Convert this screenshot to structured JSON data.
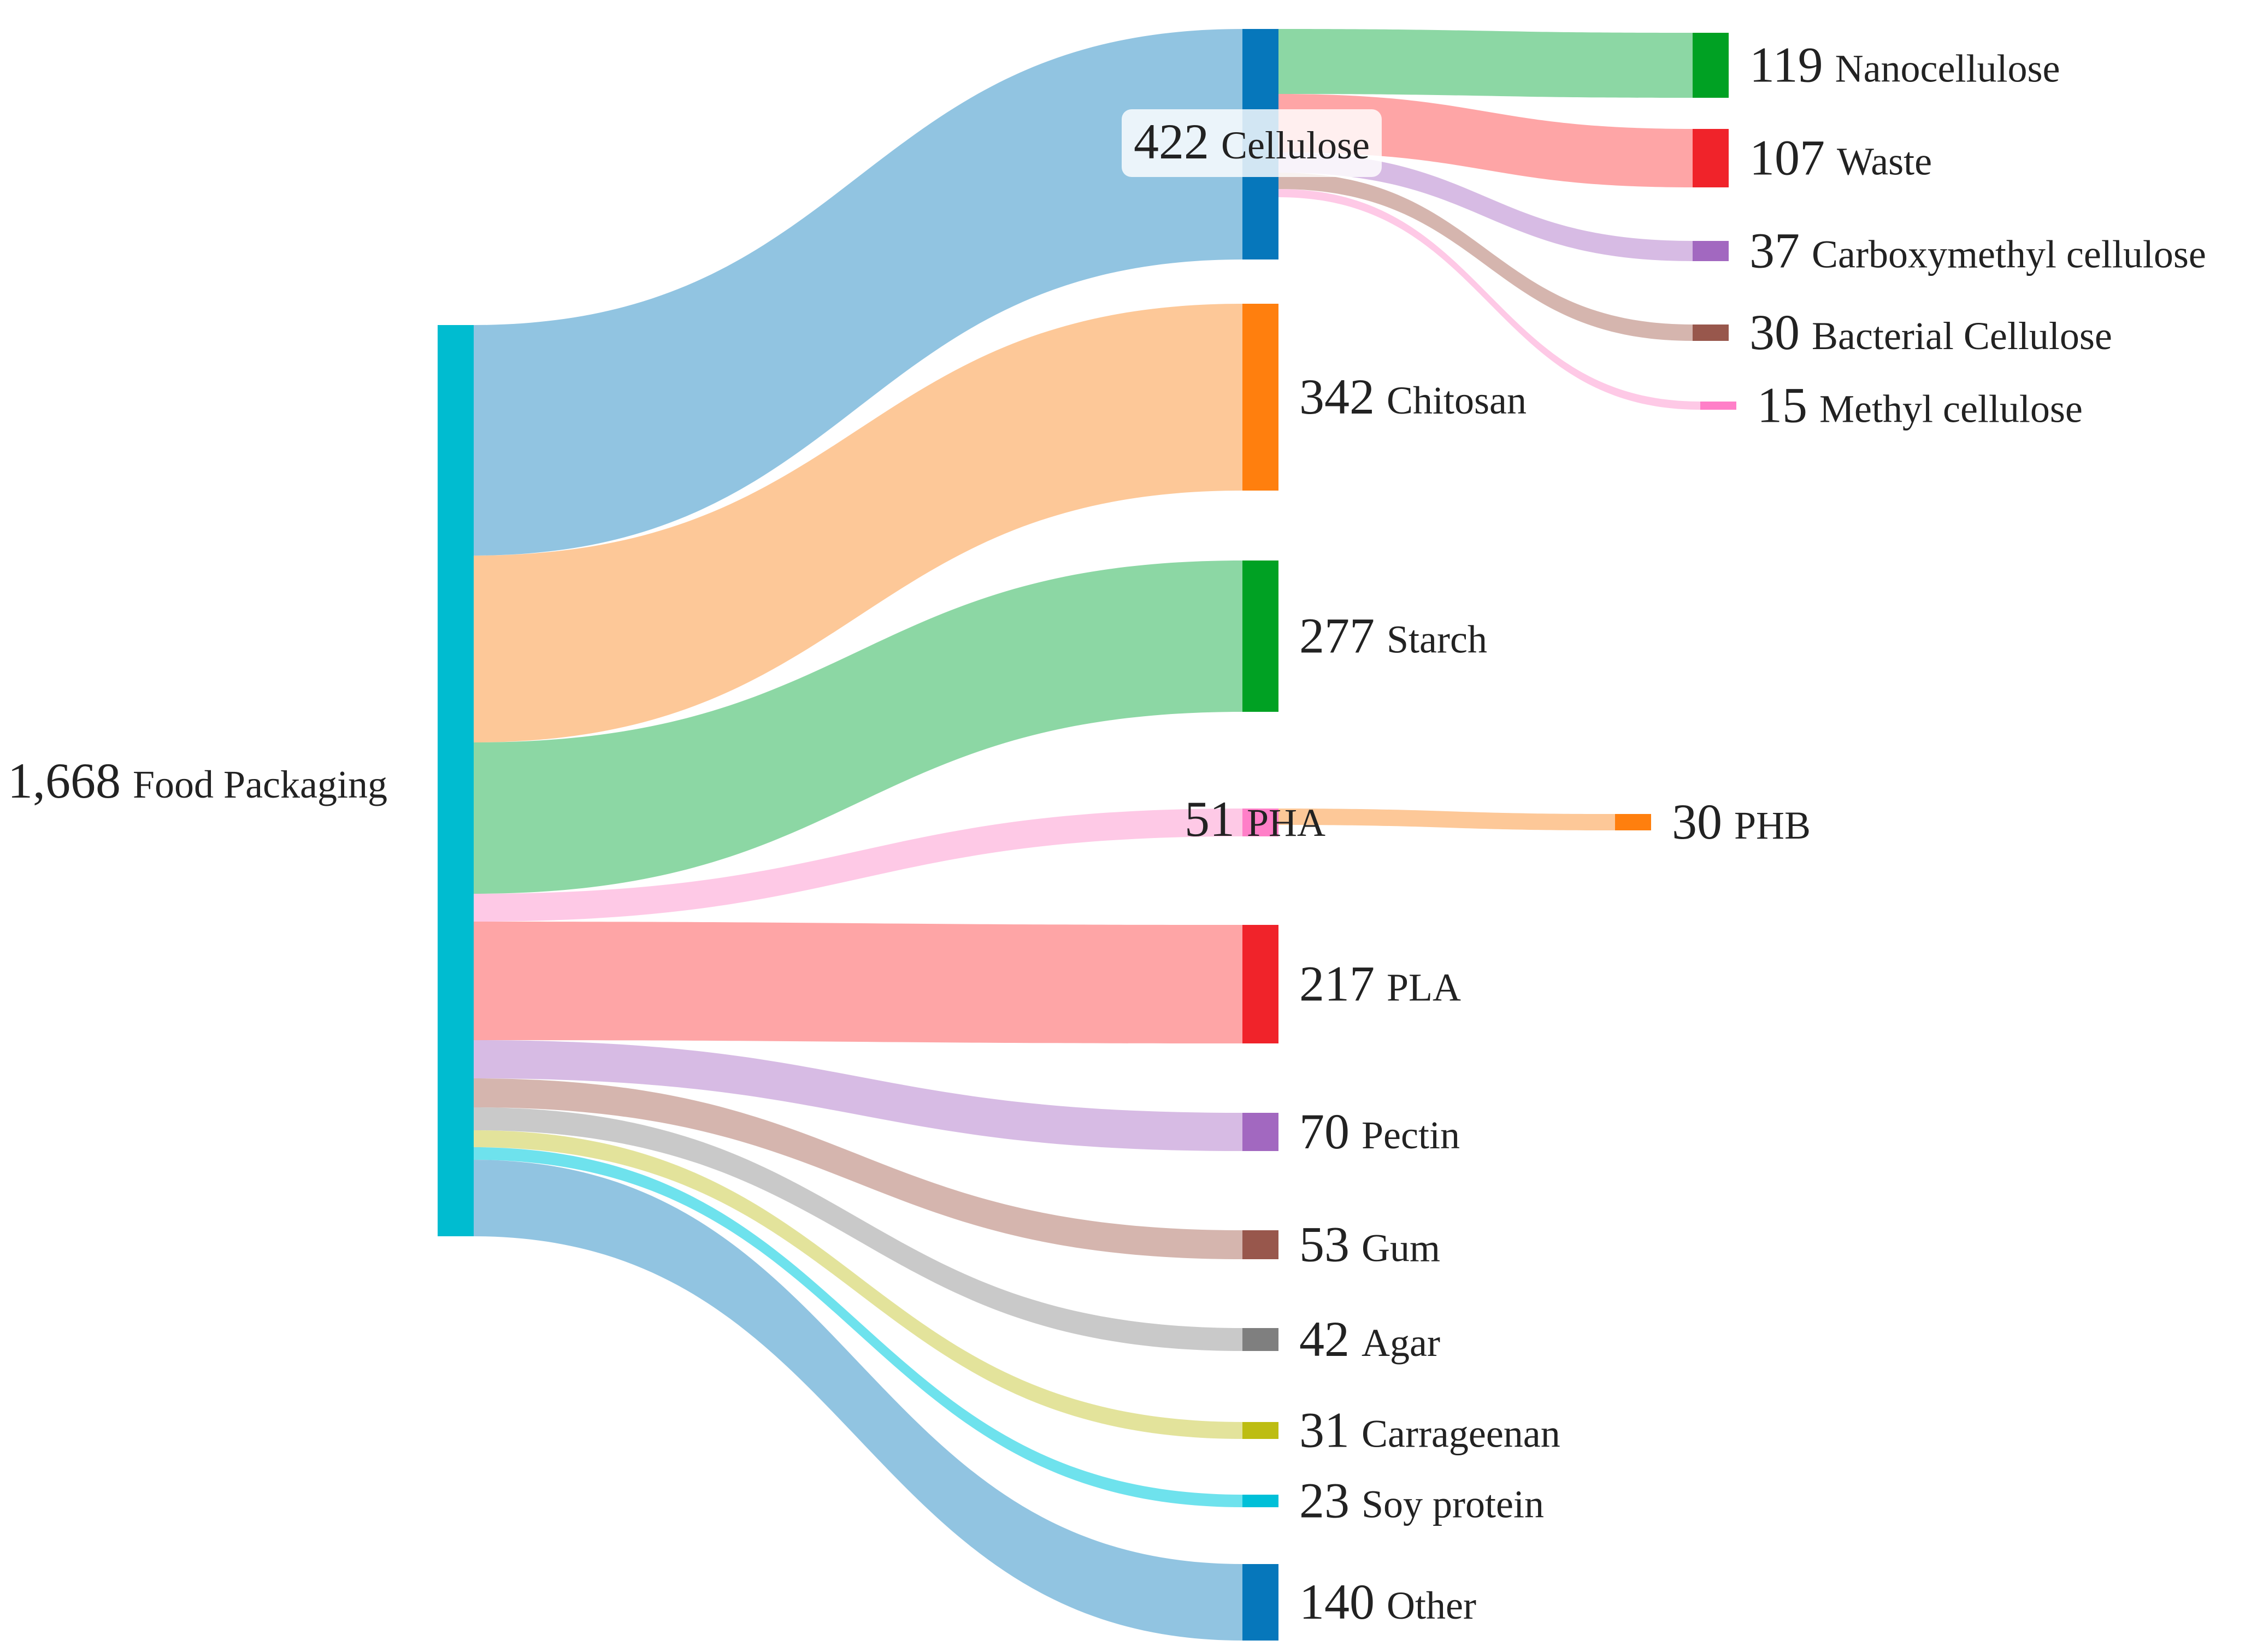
{
  "chart_data": {
    "type": "sankey",
    "title": "",
    "root": {
      "id": "food_packaging",
      "name": "Food Packaging",
      "value_label": "1,668",
      "value": 1668,
      "color": "#00bcd0"
    },
    "materials": [
      {
        "id": "cellulose",
        "name": "Cellulose",
        "value_label": "422",
        "value": 422,
        "color": "#0677bb",
        "flow_color": "#8bc1df"
      },
      {
        "id": "chitosan",
        "name": "Chitosan",
        "value_label": "342",
        "value": 342,
        "color": "#ff7f0e",
        "flow_color": "#fdc592"
      },
      {
        "id": "starch",
        "name": "Starch",
        "value_label": "277",
        "value": 277,
        "color": "#00a123",
        "flow_color": "#86d59f"
      },
      {
        "id": "pha",
        "name": "PHA",
        "value_label": "51",
        "value": 51,
        "color": "#ff7fc8",
        "flow_color": "#fec6e5"
      },
      {
        "id": "pla",
        "name": "PLA",
        "value_label": "217",
        "value": 217,
        "color": "#f0232a",
        "flow_color": "#fea0a1"
      },
      {
        "id": "pectin",
        "name": "Pectin",
        "value_label": "70",
        "value": 70,
        "color": "#a268c0",
        "flow_color": "#d5b7e3"
      },
      {
        "id": "gum",
        "name": "Gum",
        "value_label": "53",
        "value": 53,
        "color": "#98574c",
        "flow_color": "#d3b1aa"
      },
      {
        "id": "agar",
        "name": "Agar",
        "value_label": "42",
        "value": 42,
        "color": "#7f7f7f",
        "flow_color": "#c6c6c6"
      },
      {
        "id": "carrageenan",
        "name": "Carrageenan",
        "value_label": "31",
        "value": 31,
        "color": "#bdbd12",
        "flow_color": "#e2e296"
      },
      {
        "id": "soy_protein",
        "name": "Soy protein",
        "value_label": "23",
        "value": 23,
        "color": "#00c0d8",
        "flow_color": "#66e0ec"
      },
      {
        "id": "other",
        "name": "Other",
        "value_label": "140",
        "value": 140,
        "color": "#0677bb",
        "flow_color": "#8bc1df"
      }
    ],
    "sub_products": [
      {
        "id": "nanocellulose",
        "parent": "cellulose",
        "name": "Nanocellulose",
        "value_label": "119",
        "value": 119,
        "color": "#00a123",
        "flow_color": "#86d59f"
      },
      {
        "id": "waste",
        "parent": "cellulose",
        "name": "Waste",
        "value_label": "107",
        "value": 107,
        "color": "#f0232a",
        "flow_color": "#fea0a1"
      },
      {
        "id": "cmc",
        "parent": "cellulose",
        "name": "Carboxymethyl cellulose",
        "value_label": "37",
        "value": 37,
        "color": "#a268c0",
        "flow_color": "#d5b7e3"
      },
      {
        "id": "bacterial_cellulose",
        "parent": "cellulose",
        "name": "Bacterial Cellulose",
        "value_label": "30",
        "value": 30,
        "color": "#98574c",
        "flow_color": "#d3b1aa"
      },
      {
        "id": "methyl_cellulose",
        "parent": "cellulose",
        "name": "Methyl cellulose",
        "value_label": "15",
        "value": 15,
        "color": "#ff7fc8",
        "flow_color": "#fec6e5"
      },
      {
        "id": "phb",
        "parent": "pha",
        "name": "PHB",
        "value_label": "30",
        "value": 30,
        "color": "#ff7f0e",
        "flow_color": "#fdc592"
      }
    ]
  }
}
